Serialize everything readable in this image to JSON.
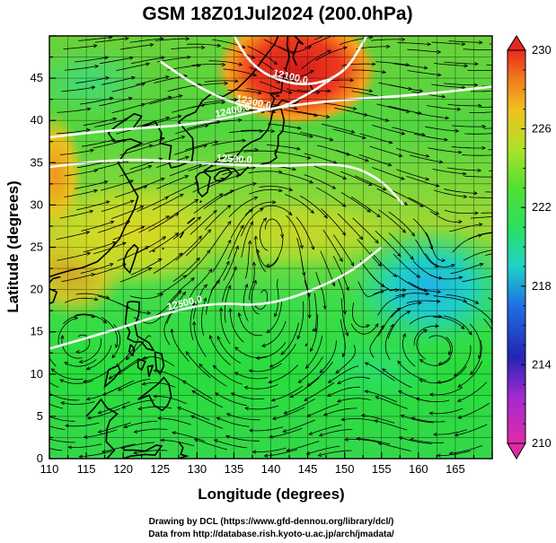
{
  "title": "GSM 18Z01Jul2024 (200.0hPa)",
  "xlabel": "Longitude (degrees)",
  "ylabel": "Latitude  (degrees)",
  "x_ticks": [
    "110",
    "115",
    "120",
    "125",
    "130",
    "135",
    "140",
    "145",
    "150",
    "155",
    "160",
    "165"
  ],
  "y_ticks": [
    "0",
    "5",
    "10",
    "15",
    "20",
    "25",
    "30",
    "35",
    "40",
    "45"
  ],
  "extent": {
    "lon": [
      110,
      170
    ],
    "lat": [
      0,
      50
    ]
  },
  "colorbar": {
    "ticks": [
      "210",
      "214",
      "218",
      "222",
      "226",
      "230"
    ],
    "range": [
      210,
      230
    ],
    "colors": [
      "#d81e9c",
      "#2020b0",
      "#1f8fe0",
      "#1fd0c8",
      "#2de062",
      "#8ee628",
      "#e6d21e",
      "#f08a1e",
      "#e8321e"
    ]
  },
  "contours": [
    {
      "label": "12400.0",
      "lat_points": [
        [
          110,
          38
        ],
        [
          120,
          39
        ],
        [
          130,
          39.5
        ],
        [
          140,
          41.5
        ],
        [
          150,
          42.5
        ],
        [
          160,
          43
        ],
        [
          170,
          44
        ]
      ]
    },
    {
      "label": "12500.0",
      "lat_points": [
        [
          110,
          34.5
        ],
        [
          120,
          35.5
        ],
        [
          130,
          35
        ],
        [
          140,
          34.5
        ],
        [
          150,
          35
        ],
        [
          155,
          33
        ],
        [
          158,
          30
        ]
      ]
    },
    {
      "label": "12500.0",
      "lat_points": [
        [
          110,
          13
        ],
        [
          118,
          15
        ],
        [
          125,
          17
        ],
        [
          132,
          18.5
        ],
        [
          140,
          18
        ],
        [
          150,
          21.5
        ],
        [
          155,
          25
        ]
      ]
    },
    {
      "label": "12300.0",
      "lat_points": [
        [
          125,
          47
        ],
        [
          130,
          44
        ],
        [
          135,
          42
        ],
        [
          140,
          41
        ],
        [
          145,
          43
        ],
        [
          150,
          46
        ]
      ]
    },
    {
      "label": "12100.0",
      "lat_points": [
        [
          135,
          50
        ],
        [
          137,
          47
        ],
        [
          140,
          45
        ],
        [
          145,
          44
        ],
        [
          150,
          45.5
        ],
        [
          153,
          50
        ]
      ]
    }
  ],
  "credits": {
    "line1": "Drawing by DCL (https://www.gfd-dennou.org/library/dcl/)",
    "line2": "Data from http://database.rish.kyoto-u.ac.jp/arch/jmadata/"
  }
}
